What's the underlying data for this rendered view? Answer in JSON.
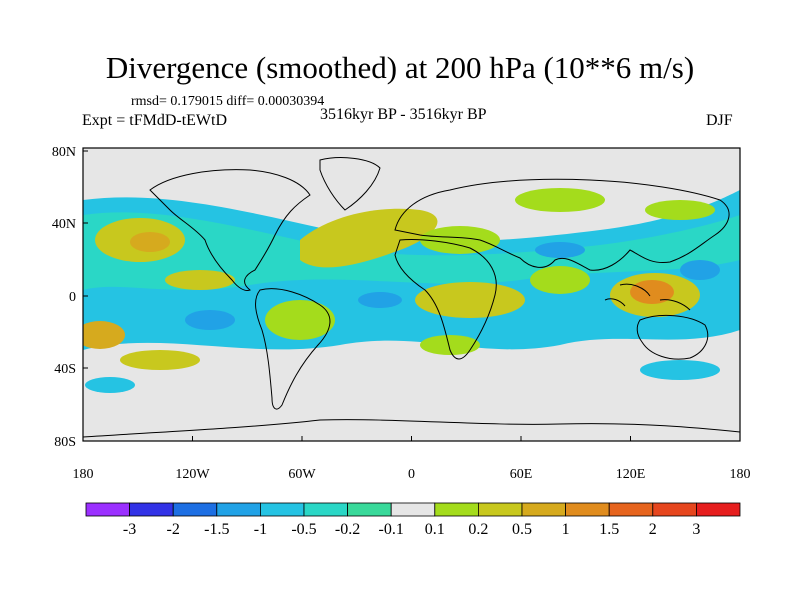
{
  "title": "Divergence (smoothed) at 200 hPa (10**6 m/s)",
  "stats": "rmsd= 0.179015 diff= 0.00030394",
  "experiment": "Expt = tFMdD-tEWtD",
  "period": "3516kyr BP - 3516kyr BP",
  "season": "DJF",
  "axes": {
    "lat_labels": [
      "80N",
      "40N",
      "0",
      "40S",
      "80S"
    ],
    "lon_labels": [
      "180",
      "120W",
      "60W",
      "0",
      "60E",
      "120E",
      "180"
    ]
  },
  "colorbar": {
    "labels": [
      "-3",
      "-2",
      "-1.5",
      "-1",
      "-0.5",
      "-0.2",
      "-0.1",
      "0.1",
      "0.2",
      "0.5",
      "1",
      "1.5",
      "2",
      "3"
    ],
    "colors": [
      "#9b30ff",
      "#3232e6",
      "#1d6fe3",
      "#21a2e6",
      "#25c3e3",
      "#2ad7c6",
      "#39d99a",
      "#e6e6e6",
      "#a4dc1c",
      "#c8c81e",
      "#d6aa1e",
      "#e08c1e",
      "#e6641e",
      "#e6461e",
      "#e61e1e"
    ]
  }
}
